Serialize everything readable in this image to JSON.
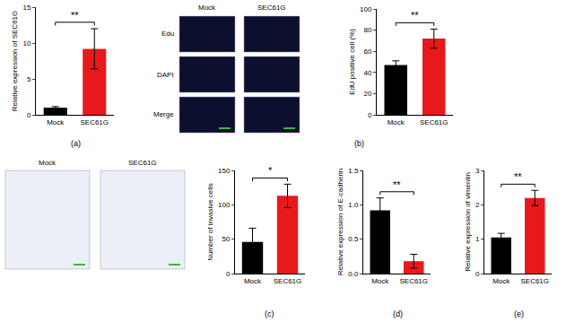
{
  "chart_data": [
    {
      "panel": "(a)",
      "type": "bar",
      "categories": [
        "Mock",
        "SEC61G"
      ],
      "values": [
        1.0,
        9.2
      ],
      "errors": [
        0.15,
        2.8
      ],
      "colors": [
        "#000000",
        "#e8191c"
      ],
      "ylabel": "Relative expression of SEC61G",
      "ylim": [
        0,
        15
      ],
      "yticks": [
        0,
        5,
        10,
        15
      ],
      "annotations": [
        "**"
      ]
    },
    {
      "type": "bar",
      "categories": [
        "Mock",
        "SEC61G"
      ],
      "values": [
        47,
        72
      ],
      "errors": [
        4,
        9
      ],
      "colors": [
        "#000000",
        "#e8191c"
      ],
      "ylabel": "EdU positive cell (%)",
      "ylim": [
        0,
        100
      ],
      "yticks": [
        0,
        20,
        40,
        60,
        80,
        100
      ],
      "annotations": [
        "**"
      ]
    },
    {
      "type": "bar",
      "categories": [
        "Mock",
        "SEC61G"
      ],
      "values": [
        46,
        113
      ],
      "errors": [
        20,
        17
      ],
      "colors": [
        "#000000",
        "#e8191c"
      ],
      "ylabel": "Number of invasive cells",
      "ylim": [
        0,
        150
      ],
      "yticks": [
        0,
        50,
        100,
        150
      ],
      "annotations": [
        "*"
      ]
    },
    {
      "panel": "(d)",
      "type": "bar",
      "categories": [
        "Mock",
        "SEC61G"
      ],
      "values": [
        0.92,
        0.18
      ],
      "errors": [
        0.18,
        0.1
      ],
      "colors": [
        "#000000",
        "#e8191c"
      ],
      "ylabel": "Relative expression of E-cadherin",
      "ylim": [
        0,
        1.5
      ],
      "yticks": [
        {
          "value": 0,
          "label": "0.0"
        },
        {
          "value": 0.5,
          "label": "0.5"
        },
        {
          "value": 1,
          "label": "1.0"
        },
        {
          "value": 1.5,
          "label": "1.5"
        }
      ],
      "annotations": [
        "**"
      ]
    },
    {
      "panel": "(e)",
      "type": "bar",
      "categories": [
        "Mock",
        "SEC61G"
      ],
      "values": [
        1.05,
        2.2
      ],
      "errors": [
        0.12,
        0.22
      ],
      "colors": [
        "#000000",
        "#e8191c"
      ],
      "ylabel": "Relative expression of vimentin",
      "ylim": [
        0,
        3
      ],
      "yticks": [
        0,
        1,
        2,
        3
      ],
      "annotations": [
        "**"
      ]
    }
  ],
  "images": [
    {
      "panel": "(b)",
      "columns": [
        "Mock",
        "SEC61G"
      ],
      "rows": [
        "Edu",
        "DAPI",
        "Merge"
      ]
    },
    {
      "panel": "(c)",
      "columns": [
        "Mock",
        "SEC61G"
      ]
    }
  ]
}
